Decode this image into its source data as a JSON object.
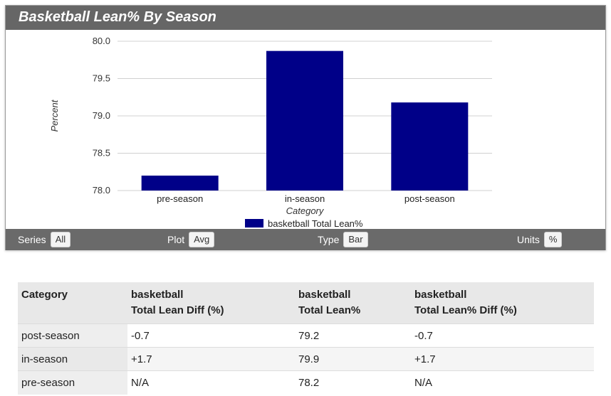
{
  "panel": {
    "title": "Basketball Lean% By Season"
  },
  "chart_data": {
    "type": "bar",
    "categories": [
      "pre-season",
      "in-season",
      "post-season"
    ],
    "series": [
      {
        "name": "basketball Total Lean%",
        "values": [
          78.2,
          79.87,
          79.18
        ],
        "color": "#000088"
      }
    ],
    "ylim": [
      78.0,
      80.0
    ],
    "yticks": [
      78.0,
      78.5,
      79.0,
      79.5,
      80.0
    ],
    "ytick_labels": [
      "78.0",
      "78.5",
      "79.0",
      "79.5",
      "80.0"
    ],
    "xlabel": "Category",
    "ylabel": "Percent",
    "grid": true,
    "legend": "bottom-center"
  },
  "controls": {
    "series_label": "Series",
    "series_value": "All",
    "plot_label": "Plot",
    "plot_value": "Avg",
    "type_label": "Type",
    "type_value": "Bar",
    "units_label": "Units",
    "units_value": "%"
  },
  "table": {
    "headers": [
      {
        "line1": "Category",
        "line2": ""
      },
      {
        "line1": "basketball",
        "line2": "Total Lean Diff (%)"
      },
      {
        "line1": "basketball",
        "line2": "Total Lean%"
      },
      {
        "line1": "basketball",
        "line2": "Total Lean% Diff (%)"
      }
    ],
    "rows": [
      [
        "post-season",
        "-0.7",
        "79.2",
        "-0.7"
      ],
      [
        "in-season",
        "+1.7",
        "79.9",
        "+1.7"
      ],
      [
        "pre-season",
        "N/A",
        "78.2",
        "N/A"
      ]
    ]
  }
}
